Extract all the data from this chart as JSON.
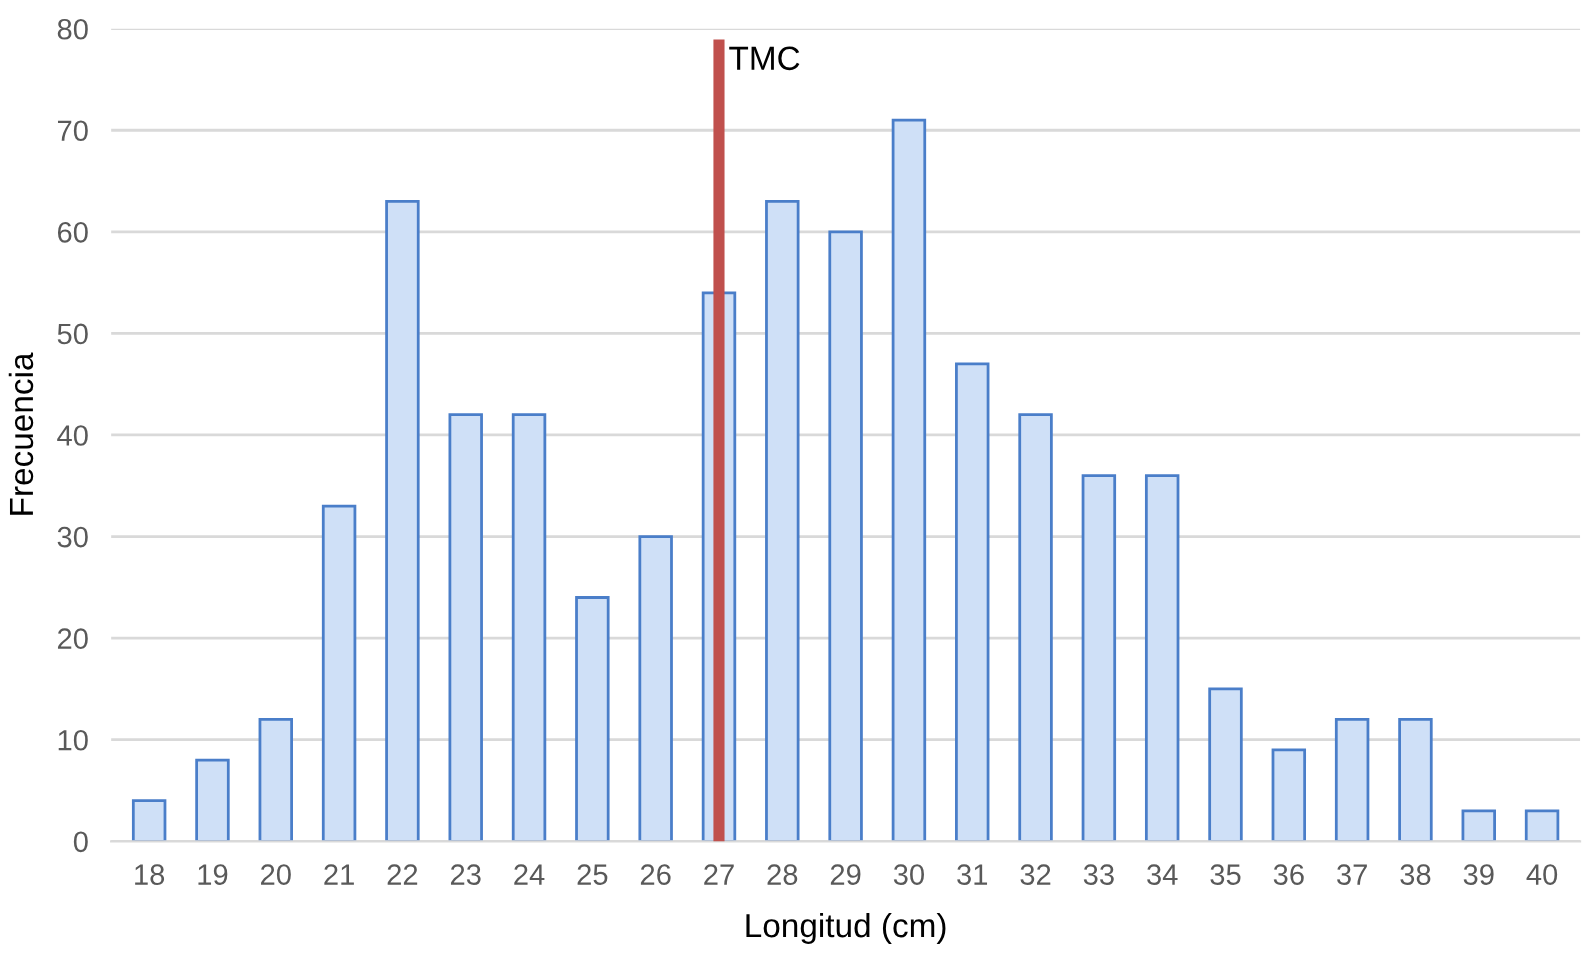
{
  "chart_data": {
    "type": "bar",
    "xlabel": "Longitud (cm)",
    "ylabel": "Frecuencia",
    "categories": [
      "18",
      "19",
      "20",
      "21",
      "22",
      "23",
      "24",
      "25",
      "26",
      "27",
      "28",
      "29",
      "30",
      "31",
      "32",
      "33",
      "34",
      "35",
      "36",
      "37",
      "38",
      "39",
      "40"
    ],
    "values": [
      4,
      8,
      12,
      33,
      63,
      42,
      42,
      24,
      30,
      54,
      63,
      60,
      71,
      47,
      42,
      36,
      36,
      15,
      9,
      12,
      12,
      3,
      3
    ],
    "color": "#cfe0f7",
    "ylim": [
      0,
      80
    ],
    "yticks": [
      0,
      10,
      20,
      30,
      40,
      50,
      60,
      70,
      80
    ],
    "grid": "y",
    "ref_lines": [
      {
        "axis": "x",
        "value": "27",
        "label": "TMC",
        "color": "#c0504d"
      }
    ]
  }
}
